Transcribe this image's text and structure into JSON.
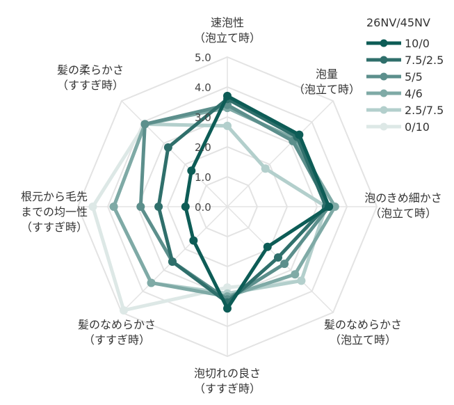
{
  "chart_data": {
    "type": "radar",
    "title": "",
    "rlim": [
      0,
      5
    ],
    "rticks": [
      "0.0",
      "1.0",
      "2.0",
      "3.0",
      "4.0",
      "5.0"
    ],
    "axes": [
      {
        "line1": "速泡性",
        "line2": "（泡立て時）"
      },
      {
        "line1": "泡量",
        "line2": "（泡立て時）"
      },
      {
        "line1": "泡のきめ細かさ",
        "line2": "（泡立て時）"
      },
      {
        "line1": "髪のなめらかさ",
        "line2": "（泡立て時）"
      },
      {
        "line1": "泡切れの良さ",
        "line2": "（すすぎ時）"
      },
      {
        "line1": "髪のなめらかさ",
        "line2": "（すすぎ時）"
      },
      {
        "line1": "根元から毛先",
        "line2": "までの均一性",
        "line3": "（すすぎ時）"
      },
      {
        "line1": "髪の柔らかさ",
        "line2": "（すすぎ時）"
      }
    ],
    "legend_title": "26NV/45NV",
    "legend_position": "top-right",
    "grid": true,
    "series": [
      {
        "name": "10/0",
        "color": "#0d5c56",
        "values": [
          3.7,
          3.4,
          3.4,
          1.9,
          3.4,
          1.6,
          1.4,
          1.7
        ]
      },
      {
        "name": "7.5/2.5",
        "color": "#2f6f6b",
        "values": [
          3.6,
          3.3,
          3.3,
          2.4,
          3.2,
          2.6,
          2.3,
          2.8
        ]
      },
      {
        "name": "5/5",
        "color": "#5c8f8c",
        "values": [
          3.4,
          3.1,
          3.4,
          2.7,
          3.1,
          2.6,
          2.9,
          3.9
        ]
      },
      {
        "name": "4/6",
        "color": "#7faaa6",
        "values": [
          3.3,
          3.2,
          3.6,
          3.2,
          3.0,
          3.6,
          3.8,
          3.9
        ]
      },
      {
        "name": "2.5/7.5",
        "color": "#b3cfcc",
        "values": [
          2.7,
          1.8,
          3.3,
          3.5,
          2.9,
          3.6,
          3.8,
          3.9
        ]
      },
      {
        "name": "0/10",
        "color": "#dde8e6",
        "values": [
          2.7,
          1.8,
          3.3,
          3.5,
          2.7,
          4.9,
          4.5,
          3.9
        ]
      }
    ]
  }
}
